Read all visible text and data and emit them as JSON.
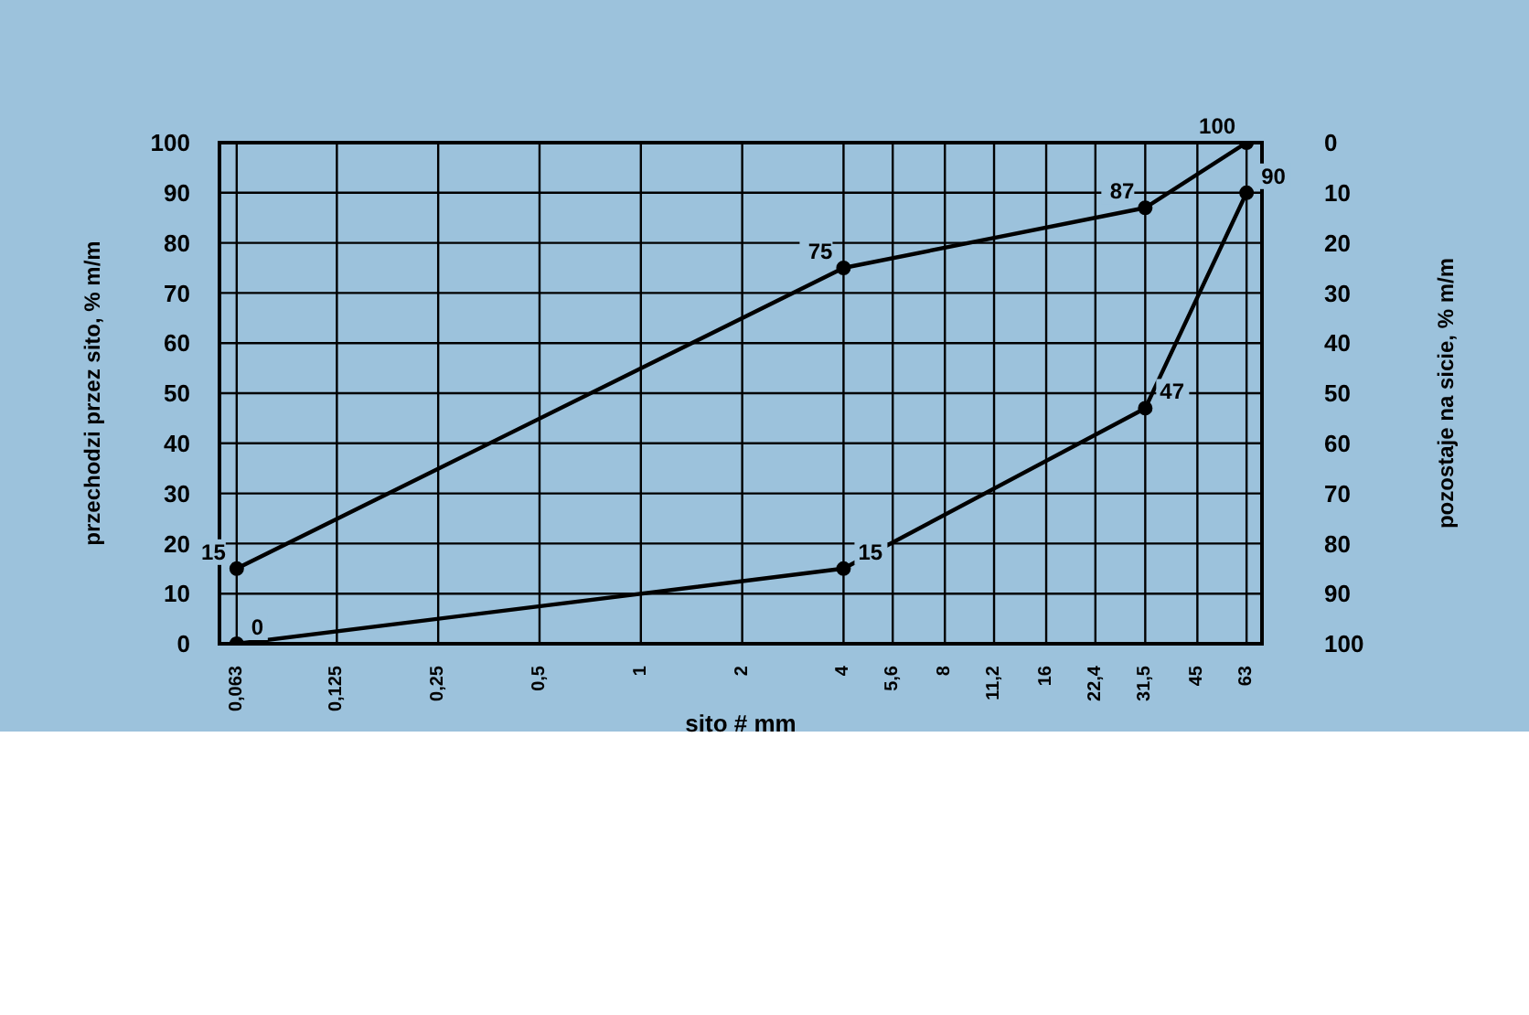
{
  "chart_data": {
    "type": "line",
    "xlabel": "sito # mm",
    "ylabel": "przechodzi przez sito, % m/m",
    "y2label": "pozostaje na sicie, % m/m",
    "log": "x",
    "xlim": [
      0.056,
      70
    ],
    "xticks": [
      {
        "value": 0.063,
        "label": "0,063"
      },
      {
        "value": 0.125,
        "label": "0,125"
      },
      {
        "value": 0.25,
        "label": "0,25"
      },
      {
        "value": 0.5,
        "label": "0,5"
      },
      1,
      2,
      4,
      {
        "value": 5.6,
        "label": "5,6"
      },
      8,
      {
        "value": 11.2,
        "label": "11,2"
      },
      16,
      {
        "value": 22.4,
        "label": "22,4"
      },
      {
        "value": 31.5,
        "label": "31,5"
      },
      45,
      63
    ],
    "ylim": [
      0,
      100
    ],
    "yticks": [
      0,
      10,
      20,
      30,
      40,
      50,
      60,
      70,
      80,
      90,
      100
    ],
    "y2lim": [
      100,
      0
    ],
    "y2ticks": [
      0,
      10,
      20,
      30,
      40,
      50,
      60,
      70,
      80,
      90,
      100
    ],
    "grid": true,
    "marker": "circle",
    "line_style": "solid",
    "data_labels": true,
    "series": [
      {
        "color": "#000000",
        "x": [
          0.063,
          4,
          31.5,
          63
        ],
        "values": [
          15,
          75,
          87,
          100
        ]
      },
      {
        "color": "#000000",
        "x": [
          0.063,
          4,
          31.5,
          63
        ],
        "values": [
          0,
          15,
          47,
          90
        ]
      }
    ]
  }
}
